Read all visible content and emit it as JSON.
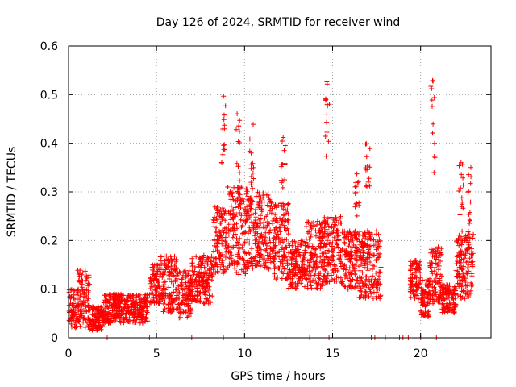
{
  "chart_data": {
    "type": "scatter",
    "title": "Day 126 of 2024, SRMTID for receiver wind",
    "xlabel": "GPS time / hours",
    "ylabel": "SRMTID / TECUs",
    "xlim": [
      0,
      24
    ],
    "ylim": [
      0,
      0.6
    ],
    "x_ticks": [
      0,
      5,
      10,
      15,
      20
    ],
    "y_ticks": [
      0,
      0.1,
      0.2,
      0.3,
      0.4,
      0.5,
      0.6
    ],
    "x_tick_labels": [
      "0",
      "5",
      "10",
      "15",
      "20"
    ],
    "y_tick_labels": [
      "0",
      "0.1",
      "0.2",
      "0.3",
      "0.4",
      "0.5",
      "0.6"
    ],
    "grid": true,
    "marker": "plus",
    "color": "#ff0000",
    "series": [
      {
        "name": "SRMTID",
        "segments": [
          {
            "x0": 0.0,
            "x1": 0.5,
            "base": 0.06,
            "spread": 0.04
          },
          {
            "x0": 0.5,
            "x1": 1.2,
            "base": 0.08,
            "spread": 0.06
          },
          {
            "x0": 1.2,
            "x1": 2.0,
            "base": 0.04,
            "spread": 0.025
          },
          {
            "x0": 2.0,
            "x1": 4.5,
            "base": 0.06,
            "spread": 0.03
          },
          {
            "x0": 4.6,
            "x1": 5.2,
            "base": 0.11,
            "spread": 0.04
          },
          {
            "x0": 5.2,
            "x1": 6.2,
            "base": 0.11,
            "spread": 0.06
          },
          {
            "x0": 6.2,
            "x1": 7.0,
            "base": 0.09,
            "spread": 0.05
          },
          {
            "x0": 7.0,
            "x1": 8.2,
            "base": 0.12,
            "spread": 0.05
          },
          {
            "x0": 8.2,
            "x1": 9.0,
            "base": 0.2,
            "spread": 0.07
          },
          {
            "x0": 9.0,
            "x1": 10.2,
            "base": 0.22,
            "spread": 0.09
          },
          {
            "x0": 10.2,
            "x1": 11.5,
            "base": 0.22,
            "spread": 0.08
          },
          {
            "x0": 11.5,
            "x1": 12.5,
            "base": 0.2,
            "spread": 0.08
          },
          {
            "x0": 12.5,
            "x1": 13.5,
            "base": 0.15,
            "spread": 0.05
          },
          {
            "x0": 13.5,
            "x1": 14.5,
            "base": 0.17,
            "spread": 0.07
          },
          {
            "x0": 14.5,
            "x1": 15.5,
            "base": 0.18,
            "spread": 0.07
          },
          {
            "x0": 15.5,
            "x1": 16.5,
            "base": 0.16,
            "spread": 0.06
          },
          {
            "x0": 16.5,
            "x1": 17.8,
            "base": 0.15,
            "spread": 0.07
          },
          {
            "x0": 19.4,
            "x1": 20.0,
            "base": 0.12,
            "spread": 0.04
          },
          {
            "x0": 20.0,
            "x1": 20.5,
            "base": 0.08,
            "spread": 0.04
          },
          {
            "x0": 20.5,
            "x1": 21.2,
            "base": 0.13,
            "spread": 0.06
          },
          {
            "x0": 21.2,
            "x1": 22.0,
            "base": 0.08,
            "spread": 0.03
          },
          {
            "x0": 22.0,
            "x1": 23.0,
            "base": 0.15,
            "spread": 0.07
          }
        ],
        "spikes": [
          {
            "x": 8.8,
            "y0": 0.35,
            "y1": 0.5
          },
          {
            "x": 9.6,
            "y0": 0.3,
            "y1": 0.49
          },
          {
            "x": 10.4,
            "y0": 0.28,
            "y1": 0.44
          },
          {
            "x": 12.2,
            "y0": 0.3,
            "y1": 0.43
          },
          {
            "x": 14.7,
            "y0": 0.37,
            "y1": 0.53
          },
          {
            "x": 17.0,
            "y0": 0.3,
            "y1": 0.4
          },
          {
            "x": 16.4,
            "y0": 0.25,
            "y1": 0.34
          },
          {
            "x": 20.7,
            "y0": 0.3,
            "y1": 0.53
          },
          {
            "x": 22.3,
            "y0": 0.25,
            "y1": 0.39
          },
          {
            "x": 22.8,
            "y0": 0.2,
            "y1": 0.38
          }
        ],
        "zero_points": [
          2.2,
          4.6,
          7.0,
          8.8,
          12.3,
          13.7,
          14.8,
          17.2,
          17.4,
          18.0,
          18.8,
          19.0,
          19.3,
          20.0,
          20.9
        ]
      }
    ]
  }
}
